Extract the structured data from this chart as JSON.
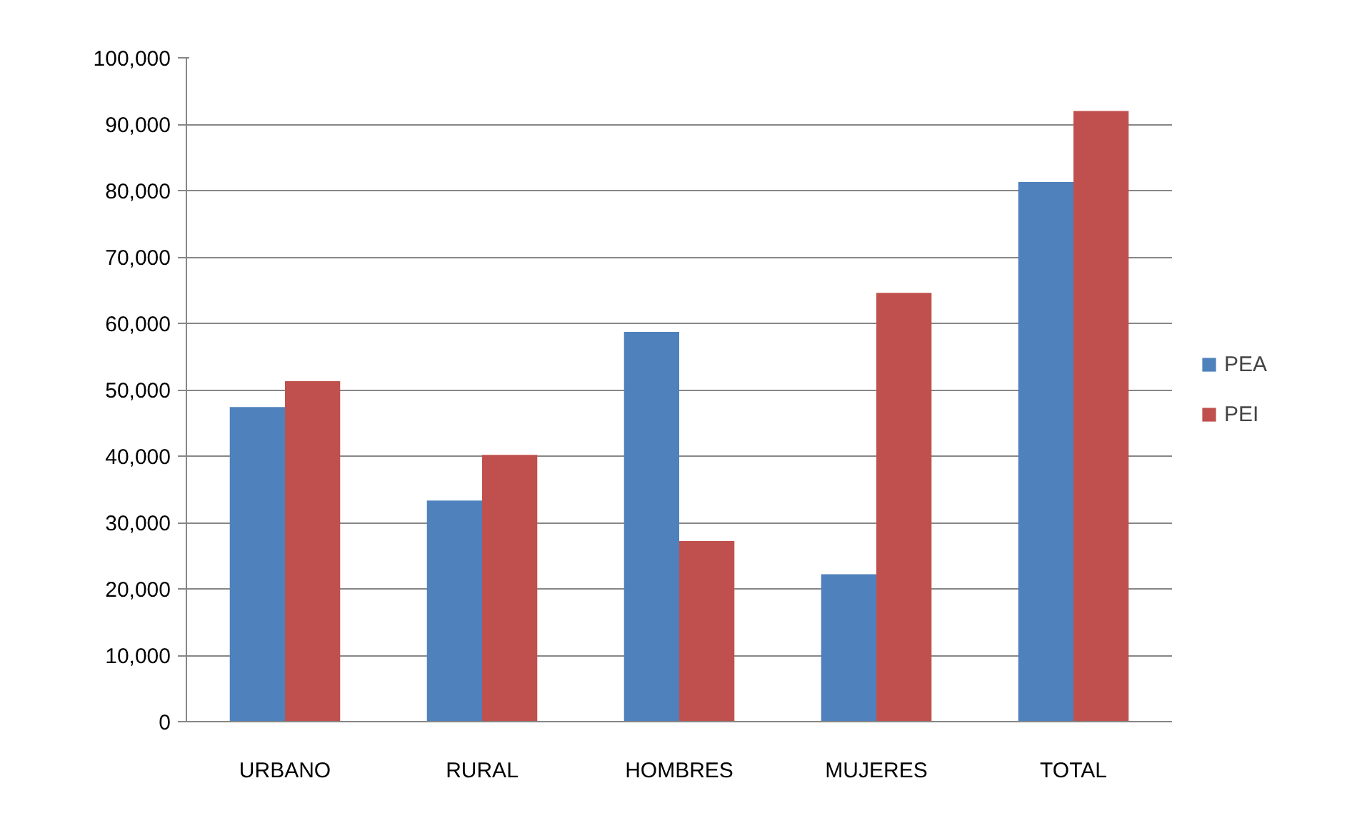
{
  "chart_data": {
    "type": "bar",
    "categories": [
      "URBANO",
      "RURAL",
      "HOMBRES",
      "MUJERES",
      "TOTAL"
    ],
    "series": [
      {
        "name": "PEA",
        "color": "#4f81bd",
        "values": [
          47400,
          33300,
          58700,
          22200,
          81300
        ]
      },
      {
        "name": "PEI",
        "color": "#c0504d",
        "values": [
          51300,
          40200,
          27200,
          64600,
          92000
        ]
      }
    ],
    "ylim": [
      0,
      100000
    ],
    "yticks": [
      0,
      {
        "value": 10000,
        "label": "10,000"
      },
      {
        "value": 20000,
        "label": "20,000"
      },
      {
        "value": 30000,
        "label": "30,000"
      },
      {
        "value": 40000,
        "label": "40,000"
      },
      {
        "value": 50000,
        "label": "50,000"
      },
      {
        "value": 60000,
        "label": "60,000"
      },
      {
        "value": 70000,
        "label": "70,000"
      },
      {
        "value": 80000,
        "label": "80,000"
      },
      {
        "value": 90000,
        "label": "90,000"
      },
      {
        "value": 100000,
        "label": "100,000"
      }
    ],
    "grid": "y",
    "legend": "right"
  }
}
